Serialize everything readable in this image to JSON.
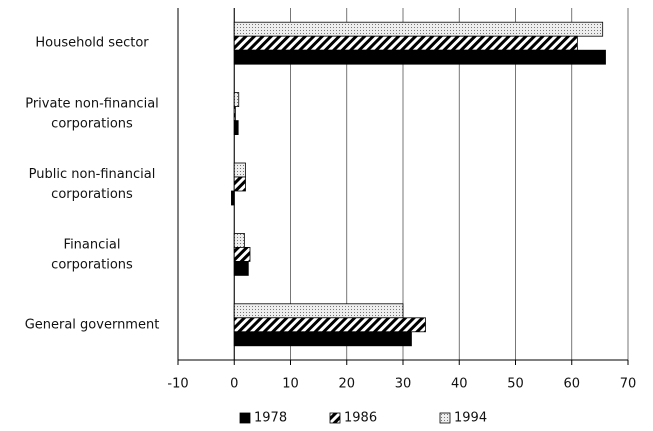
{
  "chart_data": {
    "type": "bar",
    "orientation": "horizontal",
    "categories": [
      "Household sector",
      "Private non-financial\ncorporations",
      "Public non-financial\ncorporations",
      "Financial\ncorporations",
      "General government"
    ],
    "series": [
      {
        "name": "1994",
        "color": "#dddddd",
        "pattern": "dots",
        "values": [
          65.5,
          0.8,
          2,
          1.8,
          30
        ]
      },
      {
        "name": "1986",
        "color": "#000000",
        "pattern": "hatch",
        "values": [
          61,
          0.2,
          2,
          2.8,
          34
        ]
      },
      {
        "name": "1978",
        "color": "#000000",
        "pattern": "solid",
        "values": [
          66,
          0.7,
          -0.5,
          2.5,
          31.5
        ]
      }
    ],
    "legend_order": [
      2,
      1,
      0
    ],
    "xlim": [
      -10,
      70
    ],
    "xticks": [
      -10,
      0,
      10,
      20,
      30,
      40,
      50,
      60,
      70
    ],
    "grid": true,
    "legend": "bottom"
  }
}
